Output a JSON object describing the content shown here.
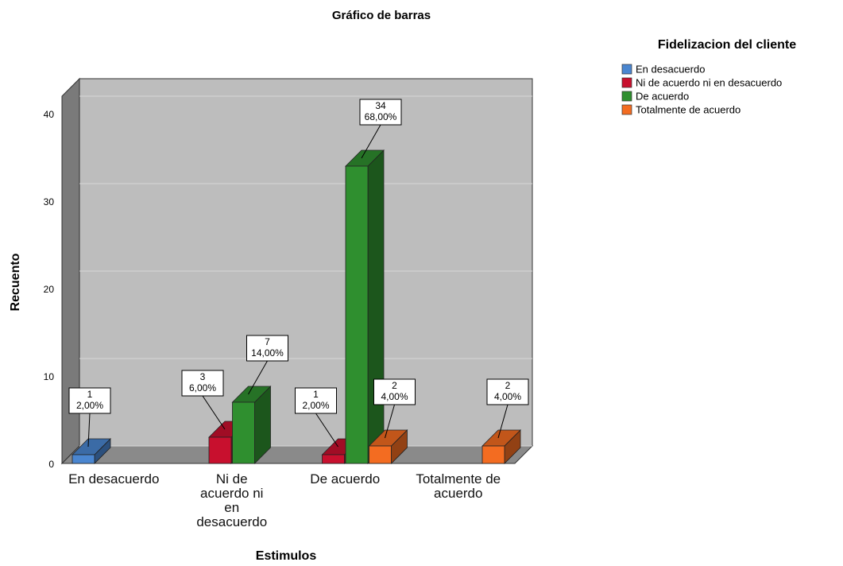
{
  "chart_data": {
    "type": "bar3d",
    "title": "Gráfico de barras",
    "x_label": "Estimulos",
    "y_label": "Recuento",
    "legend_title": "Fidelizacion del cliente",
    "categories": [
      "En desacuerdo",
      "Ni de acuerdo ni en desacuerdo",
      "De acuerdo",
      "Totalmente de acuerdo"
    ],
    "series": [
      {
        "name": "En desacuerdo",
        "color": "#4a86d0",
        "values": [
          1,
          null,
          null,
          null
        ],
        "percent_labels": [
          "2,00%",
          null,
          null,
          null
        ]
      },
      {
        "name": "Ni de acuerdo ni en desacuerdo",
        "color": "#c8102e",
        "values": [
          null,
          3,
          1,
          null
        ],
        "percent_labels": [
          null,
          "6,00%",
          "2,00%",
          null
        ]
      },
      {
        "name": "De acuerdo",
        "color": "#2f8f2f",
        "values": [
          null,
          7,
          34,
          null
        ],
        "percent_labels": [
          null,
          "14,00%",
          "68,00%",
          null
        ]
      },
      {
        "name": "Totalmente de acuerdo",
        "color": "#f36c21",
        "values": [
          null,
          null,
          2,
          2
        ],
        "percent_labels": [
          null,
          null,
          "4,00%",
          "4,00%"
        ]
      }
    ],
    "ylim": [
      0,
      42
    ],
    "yticks": [
      0,
      10,
      20,
      30,
      40
    ],
    "grid": true
  }
}
